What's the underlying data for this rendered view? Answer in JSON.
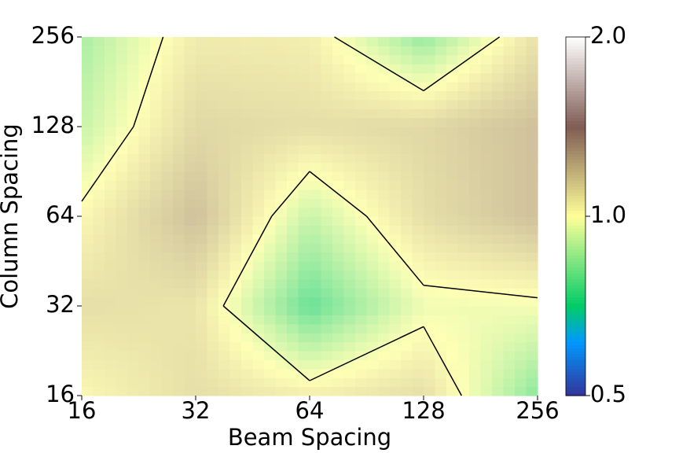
{
  "chart_data": {
    "type": "heatmap",
    "xlabel": "Beam Spacing",
    "ylabel": "Column Spacing",
    "x": [
      16,
      32,
      64,
      128,
      256
    ],
    "y": [
      16,
      32,
      64,
      128,
      256
    ],
    "z": [
      [
        1.02,
        1.1,
        1.05,
        1.1,
        0.8
      ],
      [
        1.1,
        1.08,
        0.75,
        0.97,
        0.98
      ],
      [
        1.02,
        1.2,
        0.9,
        1.1,
        1.2
      ],
      [
        0.9,
        1.12,
        1.1,
        1.12,
        1.2
      ],
      [
        0.85,
        1.06,
        1.05,
        0.82,
        1.09
      ]
    ],
    "xscale": "log",
    "yscale": "log",
    "xlim": [
      16,
      256
    ],
    "ylim": [
      16,
      256
    ],
    "xticks": [
      16,
      32,
      64,
      128,
      256
    ],
    "yticks": [
      16,
      32,
      64,
      128,
      256
    ],
    "colormap": "terrain",
    "color_scale": "log",
    "clim": [
      0.5,
      2
    ],
    "cticks": [
      0.5,
      {
        "value": 1,
        "label": "1.0"
      },
      {
        "value": 2,
        "label": "2.0"
      }
    ],
    "contour_level": 1,
    "contour_color": "#000000"
  }
}
